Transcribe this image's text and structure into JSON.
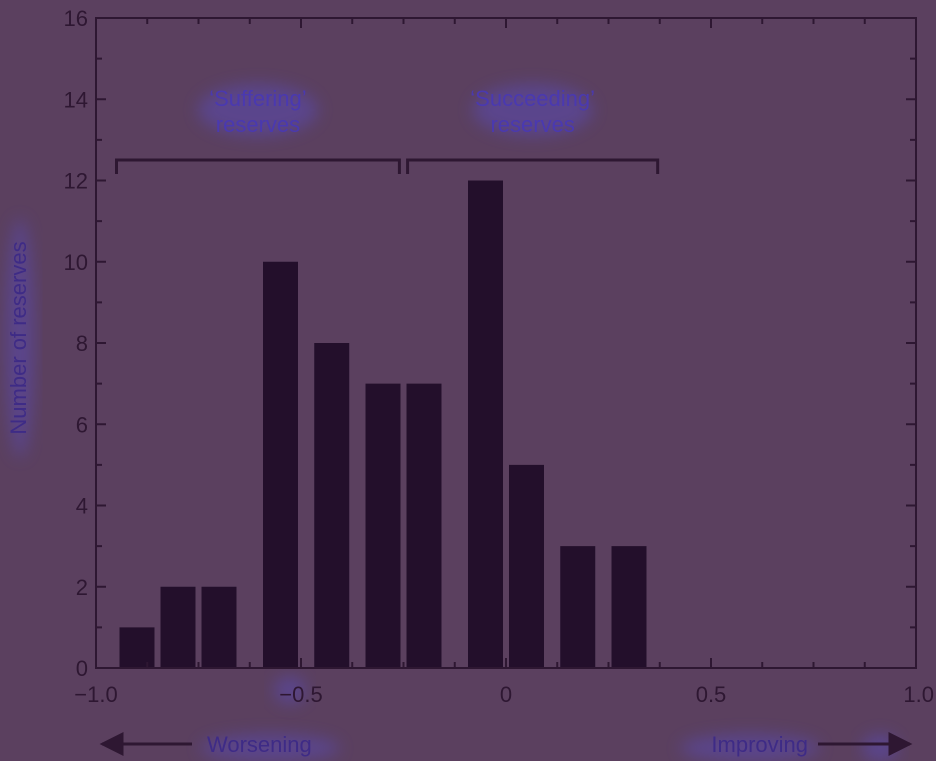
{
  "chart_data": {
    "type": "bar",
    "x": [
      -0.9,
      -0.8,
      -0.7,
      -0.55,
      -0.425,
      -0.3,
      -0.2,
      -0.05,
      0.05,
      0.175,
      0.3
    ],
    "values": [
      1,
      2,
      2,
      10,
      8,
      7,
      7,
      12,
      5,
      3,
      3
    ],
    "bar_width": 0.1,
    "xlim": [
      -1.0,
      1.0
    ],
    "ylim": [
      0,
      16
    ],
    "x_ticks": [
      -1.0,
      -0.5,
      0,
      0.5,
      1.0
    ],
    "x_tick_labels": [
      "−1.0",
      "−0.5",
      "0",
      "0.5",
      "1.0"
    ],
    "y_ticks": [
      0,
      2,
      4,
      6,
      8,
      10,
      12,
      14,
      16
    ],
    "y_tick_labels": [
      "0",
      "2",
      "4",
      "6",
      "8",
      "10",
      "12",
      "14",
      "16"
    ],
    "xlabel": "",
    "ylabel": "Number of reserves",
    "title": "",
    "grid": false,
    "bar_color": "#230f2b",
    "background_color": "#5b405f",
    "annotations": [
      {
        "line1": "‘Suffering’",
        "line2": "reserves",
        "x_range": [
          -0.95,
          -0.26
        ],
        "y": 12.5
      },
      {
        "line1": "‘Succeeding’",
        "line2": "reserves",
        "x_range": [
          -0.24,
          0.37
        ],
        "y": 12.5
      }
    ],
    "direction_labels": {
      "left": "Worsening",
      "right": "Improving"
    }
  }
}
